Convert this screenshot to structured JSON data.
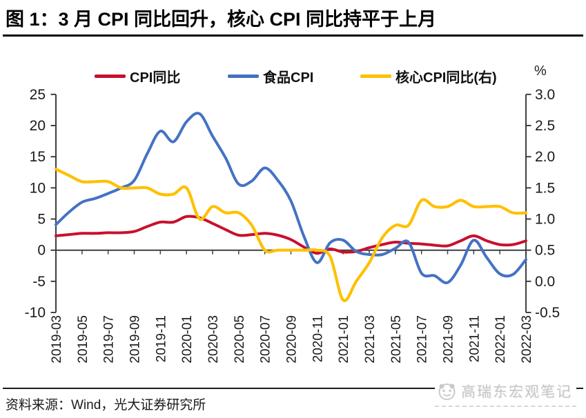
{
  "header": {
    "title": "图 1：3 月 CPI 同比回升，核心 CPI 同比持平于上月"
  },
  "legend": [
    {
      "label": "CPI同比",
      "color": "#C8102E"
    },
    {
      "label": "食品CPI",
      "color": "#4472C4"
    },
    {
      "label": "核心CPI同比(右)",
      "color": "#FFC000"
    }
  ],
  "footer": {
    "source": "资料来源：Wind，光大证券研究所"
  },
  "watermark": {
    "text": "高瑞东宏观笔记",
    "logo": "panda-logo"
  },
  "chart_data": {
    "type": "line",
    "title": "图 1：3 月 CPI 同比回升，核心 CPI 同比持平于上月",
    "x": [
      "2019-03",
      "2019-04",
      "2019-05",
      "2019-06",
      "2019-07",
      "2019-08",
      "2019-09",
      "2019-10",
      "2019-11",
      "2019-12",
      "2020-01",
      "2020-02",
      "2020-03",
      "2020-04",
      "2020-05",
      "2020-06",
      "2020-07",
      "2020-08",
      "2020-09",
      "2020-10",
      "2020-11",
      "2020-12",
      "2021-01",
      "2021-02",
      "2021-03",
      "2021-04",
      "2021-05",
      "2021-06",
      "2021-07",
      "2021-08",
      "2021-09",
      "2021-10",
      "2021-11",
      "2021-12",
      "2022-01",
      "2022-02",
      "2022-03"
    ],
    "x_tick_labels": [
      "2019-03",
      "2019-05",
      "2019-07",
      "2019-09",
      "2019-11",
      "2020-01",
      "2020-03",
      "2020-05",
      "2020-07",
      "2020-09",
      "2020-11",
      "2021-01",
      "2021-03",
      "2021-05",
      "2021-07",
      "2021-09",
      "2021-11",
      "2022-01",
      "2022-03"
    ],
    "series": [
      {
        "name": "CPI同比",
        "axis": "left",
        "color": "#C8102E",
        "values": [
          2.3,
          2.5,
          2.7,
          2.7,
          2.8,
          2.8,
          3.0,
          3.8,
          4.5,
          4.5,
          5.4,
          5.2,
          4.3,
          3.3,
          2.4,
          2.5,
          2.7,
          2.4,
          1.7,
          0.5,
          -0.5,
          0.2,
          -0.3,
          -0.2,
          0.4,
          0.9,
          1.3,
          1.1,
          1.0,
          0.8,
          0.7,
          1.5,
          2.3,
          1.5,
          0.9,
          0.9,
          1.5
        ]
      },
      {
        "name": "食品CPI",
        "axis": "left",
        "color": "#4472C4",
        "values": [
          4.1,
          6.1,
          7.7,
          8.3,
          9.1,
          10.0,
          11.2,
          15.5,
          19.1,
          17.4,
          20.6,
          21.9,
          18.3,
          14.8,
          10.6,
          11.1,
          13.2,
          11.2,
          7.9,
          2.2,
          -2.0,
          1.2,
          1.6,
          -0.2,
          -0.7,
          -0.7,
          0.3,
          1.3,
          -3.7,
          -4.1,
          -5.2,
          -2.4,
          1.6,
          -1.2,
          -3.8,
          -3.9,
          -1.5
        ]
      },
      {
        "name": "核心CPI同比(右)",
        "axis": "right",
        "color": "#FFC000",
        "values": [
          1.8,
          1.7,
          1.6,
          1.6,
          1.6,
          1.5,
          1.5,
          1.5,
          1.4,
          1.4,
          1.5,
          1.0,
          1.2,
          1.1,
          1.1,
          0.9,
          0.5,
          0.5,
          0.5,
          0.5,
          0.5,
          0.4,
          -0.3,
          0.0,
          0.3,
          0.7,
          0.9,
          0.9,
          1.3,
          1.2,
          1.2,
          1.3,
          1.2,
          1.2,
          1.2,
          1.1,
          1.1
        ]
      }
    ],
    "left_axis": {
      "tick_labels": [
        "25",
        "20",
        "15",
        "10",
        "5",
        "0",
        "-5",
        "-10"
      ],
      "range": [
        -10,
        25
      ]
    },
    "right_axis": {
      "tick_labels": [
        "3.0",
        "2.5",
        "2.0",
        "1.5",
        "1.0",
        "0.5",
        "0.0",
        "-0.5"
      ],
      "range": [
        -0.5,
        3.0
      ],
      "unit": "%"
    },
    "grid": false,
    "legend_position": "top"
  }
}
